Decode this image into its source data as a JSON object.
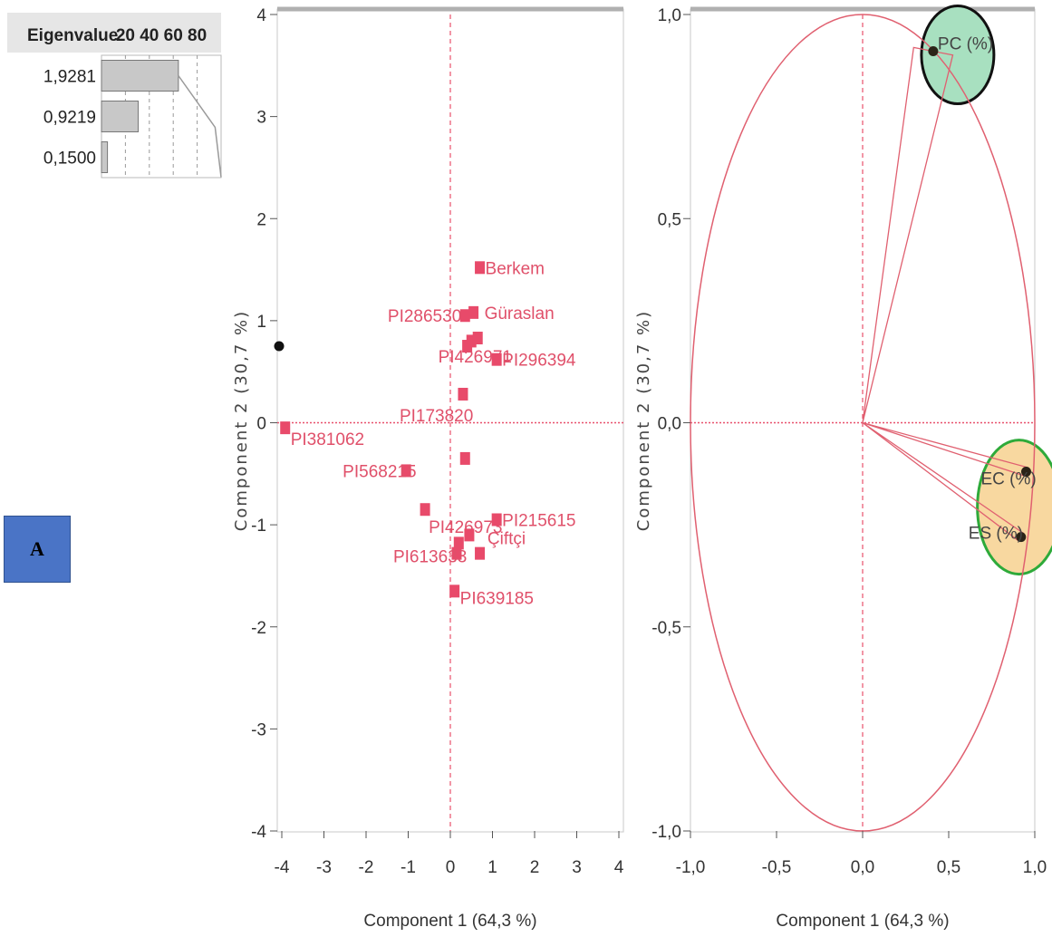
{
  "panel_label": "A",
  "colors": {
    "score": "#e84a6a",
    "axis_guide": "#e8506c",
    "circle": "#e06070",
    "highlight_green": "#a8e0c0",
    "highlight_orange": "#f8d8a0",
    "ring_black": "#111111",
    "ring_green": "#2eaa3a",
    "bar_fill": "#c8c8c8"
  },
  "chart_data": [
    {
      "type": "bar",
      "id": "eigenvalues",
      "header": "Eigenvalue",
      "axis_ticks": [
        "20",
        "40",
        "60",
        "80"
      ],
      "categories": [
        "1,9281",
        "0,9219",
        "0,1500"
      ],
      "values": [
        64.3,
        30.7,
        5.0
      ],
      "cumulative": [
        64.3,
        95.0,
        100.0
      ],
      "xlim": [
        0,
        100
      ],
      "grid": true
    },
    {
      "type": "scatter",
      "id": "score-plot",
      "xlabel": "Component 1  (64,3 %)",
      "ylabel": "Component 2  (30,7 %)",
      "xlim": [
        -4,
        4
      ],
      "ylim": [
        -4,
        4
      ],
      "x_ticks": [
        "-4",
        "-3",
        "-2",
        "-1",
        "0",
        "1",
        "2",
        "3",
        "4"
      ],
      "y_ticks": [
        "4",
        "3",
        "2",
        "1",
        "0",
        "-1",
        "-2",
        "-3",
        "-4"
      ],
      "points": [
        {
          "x": 0.7,
          "y": 1.52,
          "label": "Berkem"
        },
        {
          "x": 0.35,
          "y": 1.05,
          "label": "PI286530"
        },
        {
          "x": 0.55,
          "y": 1.08,
          "label": "Güraslan"
        },
        {
          "x": 0.5,
          "y": 0.8,
          "label": ""
        },
        {
          "x": 0.65,
          "y": 0.83,
          "label": ""
        },
        {
          "x": 0.4,
          "y": 0.75,
          "label": "PI426971"
        },
        {
          "x": 1.1,
          "y": 0.62,
          "label": "PI296394"
        },
        {
          "x": 0.3,
          "y": 0.28,
          "label": "PI173820"
        },
        {
          "x": -3.92,
          "y": -0.05,
          "label": "PI381062"
        },
        {
          "x": 0.35,
          "y": -0.35,
          "label": ""
        },
        {
          "x": -1.05,
          "y": -0.47,
          "label": "PI568215"
        },
        {
          "x": -0.6,
          "y": -0.85,
          "label": "PI426973"
        },
        {
          "x": 1.1,
          "y": -0.95,
          "label": "PI215615"
        },
        {
          "x": 0.45,
          "y": -1.1,
          "label": "Çiftçi"
        },
        {
          "x": 0.2,
          "y": -1.18,
          "label": ""
        },
        {
          "x": 0.15,
          "y": -1.28,
          "label": "PI613633"
        },
        {
          "x": 0.7,
          "y": -1.28,
          "label": ""
        },
        {
          "x": 0.1,
          "y": -1.65,
          "label": "PI639185"
        }
      ],
      "outlier_marker": {
        "x": -4.0,
        "y": 0.75
      },
      "grid": false
    },
    {
      "type": "scatter",
      "id": "loading-plot",
      "xlabel": "Component 1  (64,3 %)",
      "ylabel": "Component 2  (30,7 %)",
      "xlim": [
        -1.0,
        1.0
      ],
      "ylim": [
        -1.0,
        1.0
      ],
      "x_ticks": [
        "-1,0",
        "-0,5",
        "0,0",
        "0,5",
        "1,0"
      ],
      "y_ticks": [
        "1,0",
        "0,5",
        "0,0",
        "-0,5",
        "-1,0"
      ],
      "unit_circle": true,
      "loadings": [
        {
          "label": "PC (%)",
          "x": 0.41,
          "y": 0.91
        },
        {
          "label": "EC (%)",
          "x": 0.95,
          "y": -0.12
        },
        {
          "label": "ES (%)",
          "x": 0.92,
          "y": -0.28
        }
      ],
      "grid": false
    }
  ]
}
